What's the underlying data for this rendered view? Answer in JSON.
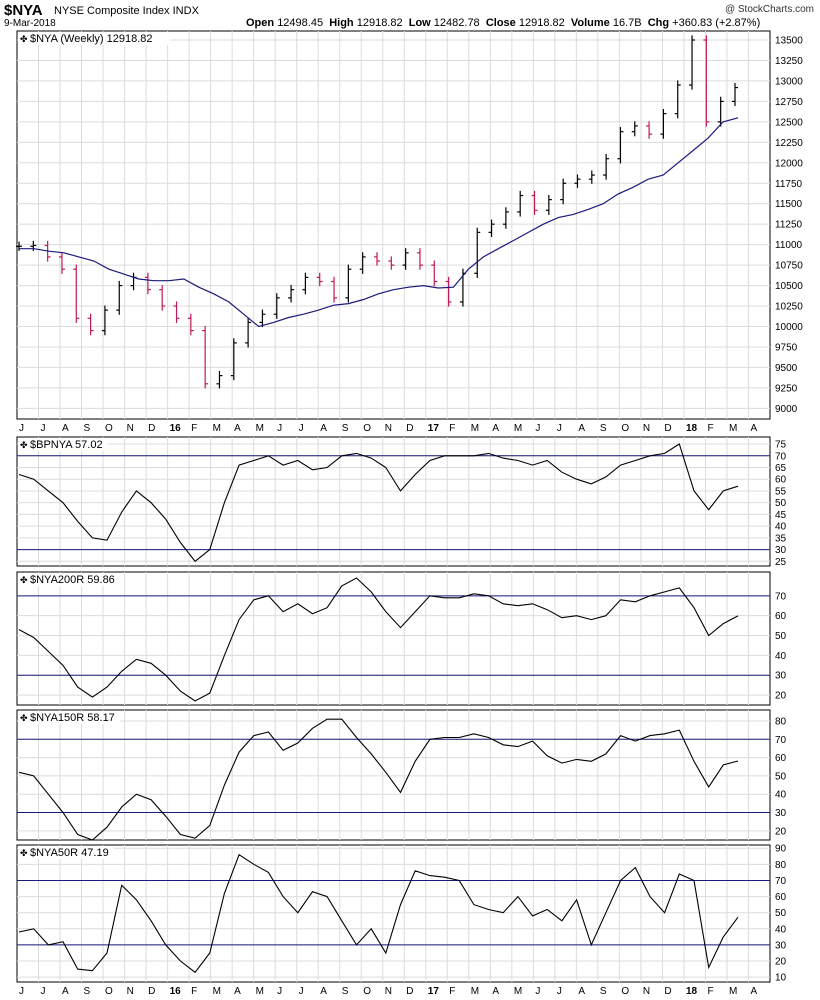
{
  "header": {
    "symbol": "$NYA",
    "name": "NYSE Composite Index",
    "exchange": "INDX",
    "date": "9-Mar-2018",
    "credit": "@ StockCharts.com",
    "quote": [
      {
        "key": "Open",
        "value": "12498.45"
      },
      {
        "key": "High",
        "value": "12918.82"
      },
      {
        "key": "Low",
        "value": "12482.78"
      },
      {
        "key": "Close",
        "value": "12918.82"
      },
      {
        "key": "Volume",
        "value": "16.7B"
      },
      {
        "key": "Chg",
        "value": "+360.83 (+2.87%)"
      }
    ]
  },
  "colors": {
    "grid": "#dcdcdc",
    "price_up": "#000000",
    "price_down": "#c0185a",
    "moving_average": "#1a1a7a",
    "threshold": "#1a1a7a",
    "indicator": "#000000"
  },
  "x_axis": {
    "months": [
      "J",
      "J",
      "A",
      "S",
      "O",
      "N",
      "D",
      "16",
      "F",
      "M",
      "A",
      "M",
      "J",
      "J",
      "A",
      "S",
      "O",
      "N",
      "D",
      "17",
      "F",
      "M",
      "A",
      "M",
      "J",
      "J",
      "A",
      "S",
      "O",
      "N",
      "D",
      "18",
      "F",
      "M",
      "A"
    ],
    "bold_labels": [
      "16",
      "17",
      "18"
    ]
  },
  "chart_data": [
    {
      "type": "ohlc",
      "title": "$NYA (Weekly) 12918.82",
      "y_ticks": [
        9000,
        9250,
        9500,
        9750,
        10000,
        10250,
        10500,
        10750,
        11000,
        11250,
        11500,
        11750,
        12000,
        12250,
        12500,
        12750,
        13000,
        13250,
        13500
      ],
      "ylim": [
        8870,
        13610
      ],
      "moving_average_series": [
        10950,
        10950,
        10920,
        10900,
        10850,
        10800,
        10700,
        10640,
        10580,
        10560,
        10560,
        10580,
        10480,
        10400,
        10300,
        10150,
        10000,
        10050,
        10110,
        10150,
        10200,
        10260,
        10280,
        10330,
        10400,
        10450,
        10480,
        10500,
        10470,
        10480,
        10700,
        10850,
        10950,
        11050,
        11150,
        11250,
        11330,
        11370,
        11430,
        11500,
        11620,
        11700,
        11800,
        11850,
        12000,
        12150,
        12300,
        12500,
        12550
      ],
      "close_series": [
        10980,
        10990,
        10850,
        10700,
        10100,
        9950,
        10200,
        10500,
        10600,
        10450,
        10250,
        10100,
        9950,
        9300,
        9400,
        9800,
        10050,
        10150,
        10350,
        10450,
        10600,
        10550,
        10350,
        10700,
        10850,
        10800,
        10750,
        10900,
        10750,
        10550,
        10300,
        10650,
        11150,
        11250,
        11400,
        11600,
        11420,
        11550,
        11750,
        11800,
        11850,
        12050,
        12380,
        12450,
        12350,
        12600,
        12950,
        13500,
        12500,
        12750,
        12918.82
      ]
    },
    {
      "type": "line",
      "title": "$BPNYA 57.02",
      "y_ticks": [
        25,
        30,
        35,
        40,
        45,
        50,
        55,
        60,
        65,
        70,
        75
      ],
      "ylim": [
        23,
        78
      ],
      "threshold_lines": [
        70,
        30
      ],
      "values": [
        62,
        60,
        55,
        50,
        42,
        35,
        34,
        46,
        55,
        50,
        43,
        33,
        25,
        30,
        50,
        66,
        68,
        70,
        66,
        68,
        64,
        65,
        70,
        71,
        69,
        65,
        55,
        62,
        68,
        70,
        70,
        70,
        71,
        69,
        68,
        66,
        68,
        63,
        60,
        58,
        61,
        66,
        68,
        70,
        71,
        75,
        55,
        47,
        55,
        57.02
      ]
    },
    {
      "type": "line",
      "title": "$NYA200R 59.86",
      "y_ticks": [
        20,
        30,
        40,
        50,
        60,
        70
      ],
      "ylim": [
        15,
        82
      ],
      "threshold_lines": [
        70,
        30
      ],
      "values": [
        53,
        49,
        42,
        35,
        24,
        19,
        24,
        32,
        38,
        36,
        30,
        22,
        17,
        21,
        40,
        58,
        68,
        70,
        62,
        66,
        61,
        64,
        75,
        79,
        72,
        62,
        54,
        62,
        70,
        69,
        69,
        71,
        70,
        66,
        65,
        66,
        63,
        59,
        60,
        58,
        60,
        68,
        67,
        70,
        72,
        74,
        64,
        50,
        56,
        59.86
      ]
    },
    {
      "type": "line",
      "title": "$NYA150R 58.17",
      "y_ticks": [
        20,
        30,
        40,
        50,
        60,
        70,
        80
      ],
      "ylim": [
        15,
        86
      ],
      "threshold_lines": [
        70,
        30
      ],
      "values": [
        52,
        50,
        40,
        30,
        18,
        15,
        22,
        33,
        40,
        37,
        28,
        18,
        16,
        23,
        45,
        63,
        72,
        74,
        64,
        68,
        76,
        81,
        81,
        71,
        62,
        52,
        41,
        58,
        70,
        71,
        71,
        73,
        71,
        67,
        66,
        69,
        61,
        57,
        59,
        58,
        62,
        72,
        69,
        72,
        73,
        75,
        58,
        44,
        56,
        58.17
      ]
    },
    {
      "type": "line",
      "title": "$NYA50R 47.19",
      "y_ticks": [
        10,
        20,
        30,
        40,
        50,
        60,
        70,
        80,
        90
      ],
      "ylim": [
        7,
        92
      ],
      "threshold_lines": [
        70,
        30
      ],
      "values": [
        38,
        40,
        30,
        32,
        15,
        14,
        25,
        67,
        58,
        45,
        30,
        20,
        13,
        25,
        62,
        86,
        80,
        75,
        60,
        50,
        63,
        60,
        45,
        30,
        40,
        25,
        55,
        76,
        73,
        72,
        70,
        55,
        52,
        50,
        60,
        48,
        52,
        45,
        58,
        30,
        50,
        70,
        78,
        60,
        50,
        74,
        70,
        16,
        35,
        47.19
      ]
    }
  ]
}
